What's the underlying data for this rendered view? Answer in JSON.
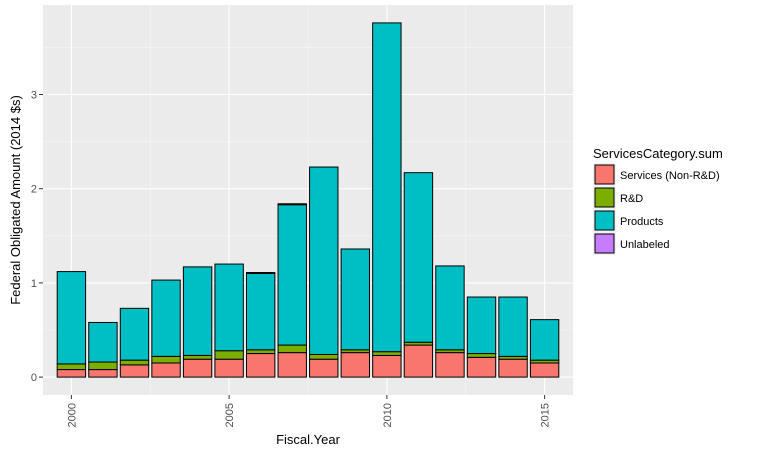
{
  "chart_data": {
    "type": "bar",
    "stacked": true,
    "xlabel": "Fiscal.Year",
    "ylabel": "Federal Obligated Amount (2014 $s)",
    "x": [
      2000,
      2001,
      2002,
      2003,
      2004,
      2005,
      2006,
      2007,
      2008,
      2009,
      2010,
      2011,
      2012,
      2013,
      2014,
      2015
    ],
    "xlim": [
      1999.1,
      2015.9
    ],
    "ylim": [
      -0.19,
      3.95
    ],
    "x_ticks": [
      "2000",
      "2005",
      "2010",
      "2015"
    ],
    "y_ticks": [
      "0",
      "1",
      "2",
      "3"
    ],
    "grid": true,
    "legend_title": "ServicesCategory.sum",
    "legend_position": "right",
    "series": [
      {
        "name": "Services (Non-R&D)",
        "color": "#F8766D",
        "values": [
          0.08,
          0.08,
          0.13,
          0.15,
          0.19,
          0.19,
          0.25,
          0.26,
          0.19,
          0.26,
          0.23,
          0.34,
          0.26,
          0.21,
          0.19,
          0.15
        ]
      },
      {
        "name": "R&D",
        "color": "#7CAE00",
        "values": [
          0.06,
          0.08,
          0.05,
          0.07,
          0.04,
          0.09,
          0.04,
          0.08,
          0.05,
          0.03,
          0.04,
          0.03,
          0.03,
          0.04,
          0.03,
          0.03
        ]
      },
      {
        "name": "Products",
        "color": "#00BFC4",
        "values": [
          0.98,
          0.42,
          0.55,
          0.81,
          0.94,
          0.92,
          0.81,
          1.49,
          1.99,
          1.07,
          3.49,
          1.8,
          0.89,
          0.6,
          0.63,
          0.43
        ]
      },
      {
        "name": "Unlabeled",
        "color": "#C77CFF",
        "values": [
          0,
          0,
          0,
          0,
          0,
          0,
          0.01,
          0.01,
          0,
          0,
          0,
          0,
          0,
          0,
          0,
          0
        ]
      }
    ]
  }
}
